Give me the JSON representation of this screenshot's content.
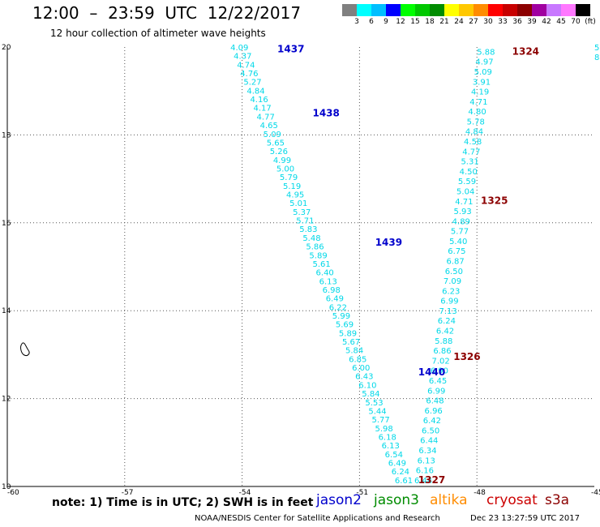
{
  "header": {
    "title": "12:00  –  23:59  UTC  12/22/2017",
    "subtitle": "12 hour collection of altimeter wave heights"
  },
  "colorbar": {
    "colors": [
      "#808080",
      "#00ffff",
      "#00bfff",
      "#0000ff",
      "#00ff00",
      "#00c800",
      "#008c00",
      "#ffff00",
      "#ffc800",
      "#ff8c00",
      "#ff0000",
      "#c80000",
      "#8c0000",
      "#a000a0",
      "#c878ff",
      "#ff78ff",
      "#000000"
    ],
    "labels": [
      "3",
      "6",
      "9",
      "12",
      "15",
      "18",
      "21",
      "24",
      "27",
      "30",
      "33",
      "36",
      "39",
      "42",
      "45",
      "70",
      "(ft)"
    ]
  },
  "axes": {
    "x_ticks": [
      "-60",
      "-57",
      "-54",
      "-51",
      "-48",
      "-45"
    ],
    "y_ticks": [
      "20",
      "18",
      "16",
      "14",
      "12",
      "10"
    ]
  },
  "chart_data": {
    "type": "scatter",
    "xlim": [
      -60,
      -45
    ],
    "ylim": [
      10,
      20
    ],
    "grid": true,
    "passes": [
      {
        "id": "1437",
        "satellite": "jason2",
        "label_at": [
          -53.1,
          19.95
        ]
      },
      {
        "id": "1438",
        "satellite": "jason2",
        "label_at": [
          -52.2,
          18.5
        ]
      },
      {
        "id": "1439",
        "satellite": "jason2",
        "label_at": [
          -50.6,
          15.55
        ]
      },
      {
        "id": "1440",
        "satellite": "jason2",
        "label_at": [
          -49.5,
          12.6
        ]
      },
      {
        "id": "1324",
        "satellite": "cryosat",
        "label_at": [
          -47.1,
          19.9
        ]
      },
      {
        "id": "1325",
        "satellite": "cryosat",
        "label_at": [
          -47.9,
          16.5
        ]
      },
      {
        "id": "1326",
        "satellite": "cryosat",
        "label_at": [
          -48.6,
          12.95
        ]
      },
      {
        "id": "1327",
        "satellite": "cryosat",
        "label_at": [
          -49.5,
          10.15
        ]
      }
    ],
    "track_jason2": {
      "start": [
        -54.3,
        20.0
      ],
      "end": [
        -50.1,
        10.15
      ],
      "values": [
        "4.09",
        "4.37",
        "4.74",
        "4.76",
        "5.27",
        "4.84",
        "4.16",
        "4.17",
        "4.77",
        "4.65",
        "5.09",
        "5.65",
        "5.26",
        "4.99",
        "5.00",
        "5.79",
        "5.19",
        "4.95",
        "5.01",
        "5.37",
        "5.71",
        "5.83",
        "5.48",
        "5.86",
        "5.89",
        "5.61",
        "6.40",
        "6.13",
        "6.98",
        "6.49",
        "6.22",
        "5.99",
        "5.69",
        "5.89",
        "5.67",
        "5.84",
        "6.85",
        "6.00",
        "6.43",
        "6.10",
        "5.84",
        "5.53",
        "5.44",
        "5.77",
        "5.98",
        "6.18",
        "6.13",
        "6.54",
        "6.49",
        "6.24",
        "6.61"
      ]
    },
    "track_cryosat": {
      "start": [
        -48.0,
        19.9
      ],
      "end": [
        -49.6,
        10.15
      ],
      "values": [
        "5.88",
        "4.97",
        "5.09",
        "3.91",
        "4.19",
        "4.71",
        "4.80",
        "5.78",
        "4.84",
        "4.58",
        "4.77",
        "5.31",
        "4.50",
        "5.59",
        "5.04",
        "4.71",
        "5.93",
        "4.89",
        "5.77",
        "5.40",
        "6.75",
        "6.87",
        "6.50",
        "7.09",
        "6.23",
        "6.99",
        "7.13",
        "6.24",
        "6.42",
        "5.88",
        "6.86",
        "7.02",
        "6.90",
        "6.45",
        "6.99",
        "6.48",
        "6.96",
        "6.42",
        "6.50",
        "6.44",
        "6.34",
        "6.13",
        "6.16",
        "6.44"
      ]
    },
    "edge_values": [
      "5",
      "8"
    ]
  },
  "legend": {
    "note": "note: 1) Time is in UTC; 2) SWH is in feet",
    "satellites": [
      {
        "name": "jason2",
        "color": "#0000cc"
      },
      {
        "name": "jason3",
        "color": "#008c00"
      },
      {
        "name": "altika",
        "color": "#ff8c00"
      },
      {
        "name": "cryosat",
        "color": "#cc0000"
      },
      {
        "name": "s3a",
        "color": "#8c0000"
      }
    ]
  },
  "footer": {
    "credit": "NOAA/NESDIS Center for Satellite Applications and Research",
    "timestamp": "Dec 23 13:27:59 UTC 2017"
  }
}
